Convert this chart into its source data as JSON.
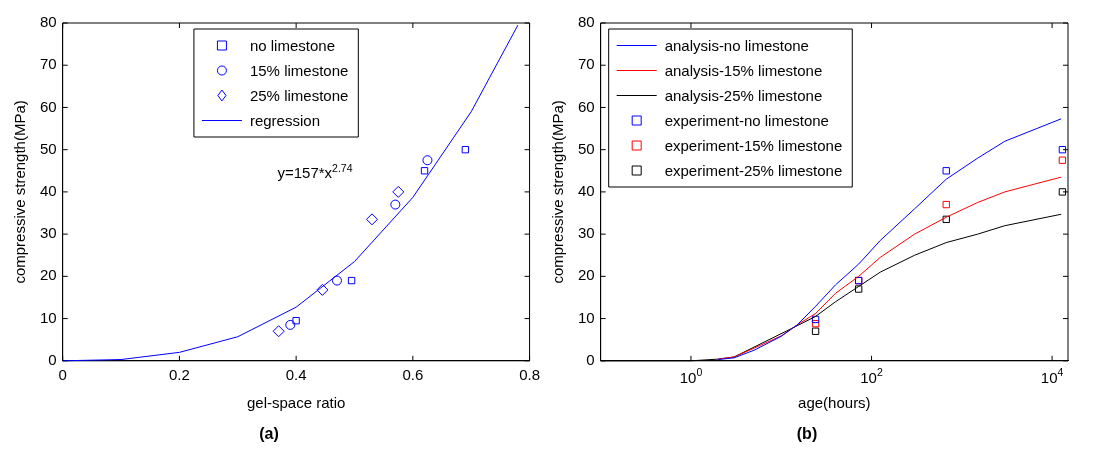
{
  "chart_data": [
    {
      "type": "scatter",
      "title": "(a)",
      "xlabel": "gel-space ratio",
      "ylabel": "compressive strength(MPa)",
      "xlim": [
        0,
        0.8
      ],
      "xticks": [
        0,
        0.2,
        0.4,
        0.6,
        0.8
      ],
      "ylim": [
        0,
        80
      ],
      "yticks": [
        0,
        10,
        20,
        30,
        40,
        50,
        60,
        70,
        80
      ],
      "grid": false,
      "legend": "top",
      "annotations": [
        "y=157*x$^{2.74}$"
      ],
      "series": [
        {
          "name": "no limestone",
          "marker": "square",
          "color": "#0000ff",
          "x": [
            0.4,
            0.495,
            0.62,
            0.69
          ],
          "values": [
            9.5,
            19,
            45,
            50
          ]
        },
        {
          "name": "15% limestone",
          "marker": "circle",
          "color": "#0000ff",
          "x": [
            0.39,
            0.47,
            0.57,
            0.625
          ],
          "values": [
            8.5,
            19,
            37,
            47.5
          ]
        },
        {
          "name": "25% limestone",
          "marker": "diamond",
          "color": "#0000ff",
          "x": [
            0.37,
            0.445,
            0.53,
            0.575
          ],
          "values": [
            7,
            16.8,
            33.5,
            40
          ]
        },
        {
          "name": "regression",
          "type": "line",
          "marker": "none",
          "color": "#0000ff",
          "x": [
            0,
            0.1,
            0.2,
            0.3,
            0.4,
            0.5,
            0.6,
            0.7,
            0.78
          ],
          "values": [
            0,
            0.3,
            2,
            5.7,
            12.7,
            23.5,
            38.7,
            59,
            79.5
          ]
        }
      ]
    },
    {
      "type": "line",
      "title": "(b)",
      "xlabel": "age(hours)",
      "ylabel": "compressive strength(MPa)",
      "log": "x",
      "xlim": [
        0.1,
        15000
      ],
      "xticks": [
        {
          "value": 1,
          "label": "10$^{0}$"
        },
        {
          "value": 100,
          "label": "10$^{2}$"
        },
        {
          "value": 10000,
          "label": "10$^{4}$"
        }
      ],
      "ylim": [
        0,
        80
      ],
      "yticks": [
        0,
        10,
        20,
        30,
        40,
        50,
        60,
        70,
        80
      ],
      "grid": false,
      "legend": "top left",
      "series": [
        {
          "name": "analysis-no limestone",
          "marker": "none",
          "color": "#0000ff",
          "x": [
            2,
            3,
            5,
            10,
            15,
            24,
            40,
            72,
            125,
            300,
            672,
            1500,
            3000,
            12600
          ],
          "values": [
            0.3,
            0.7,
            2.5,
            5.8,
            8.5,
            12.9,
            18,
            22.9,
            28.5,
            36,
            43,
            48,
            52,
            57.3
          ]
        },
        {
          "name": "analysis-15% limestone",
          "marker": "none",
          "color": "#ff0000",
          "x": [
            2,
            3,
            5,
            10,
            15,
            24,
            40,
            72,
            125,
            300,
            672,
            1500,
            3000,
            12600
          ],
          "values": [
            0.4,
            0.9,
            3,
            5.9,
            8.5,
            11.2,
            16,
            20,
            24.5,
            30,
            34,
            37.5,
            40,
            43.5
          ]
        },
        {
          "name": "analysis-25% limestone",
          "marker": "none",
          "color": "#000000",
          "x": [
            0.1,
            1,
            2,
            3,
            15,
            24,
            40,
            72,
            125,
            300,
            672,
            1500,
            3000,
            12600
          ],
          "values": [
            0,
            0,
            0.4,
            0.9,
            8.3,
            10.5,
            14,
            17.6,
            21,
            25,
            28,
            30,
            32,
            34.7
          ]
        },
        {
          "name": "experiment-no limestone",
          "type": "scatter",
          "marker": "square",
          "color": "#0000ff",
          "x": [
            24,
            72,
            672,
            13000
          ],
          "values": [
            9.8,
            19,
            45,
            50
          ]
        },
        {
          "name": "experiment-15% limestone",
          "type": "scatter",
          "marker": "square",
          "color": "#ff0000",
          "x": [
            24,
            72,
            672,
            13000
          ],
          "values": [
            8.8,
            19,
            37,
            47.5
          ]
        },
        {
          "name": "experiment-25% limestone",
          "type": "scatter",
          "marker": "square",
          "color": "#000000",
          "x": [
            24,
            72,
            672,
            13000
          ],
          "values": [
            7,
            17,
            33.5,
            40
          ]
        }
      ]
    }
  ]
}
